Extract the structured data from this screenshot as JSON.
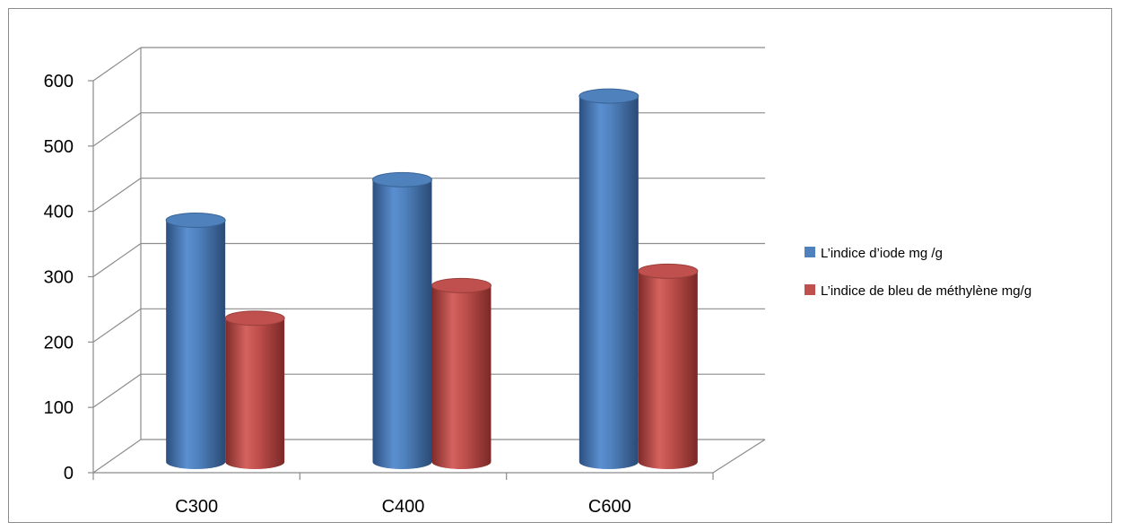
{
  "chart_data": {
    "type": "bar",
    "style": "3d-cylinder",
    "categories": [
      "C300",
      "C400",
      "C600"
    ],
    "series": [
      {
        "name": "L’indice d’iode mg /g",
        "values": [
          370,
          432,
          560
        ],
        "color": "#4f81bd"
      },
      {
        "name": "L’indice de bleu de méthylène mg/g",
        "values": [
          220,
          270,
          292
        ],
        "color": "#c0504d"
      }
    ],
    "y_ticks": [
      "0",
      "100",
      "200",
      "300",
      "400",
      "500",
      "600"
    ],
    "ylim": [
      0,
      600
    ],
    "grid": true,
    "legend_position": "right"
  }
}
